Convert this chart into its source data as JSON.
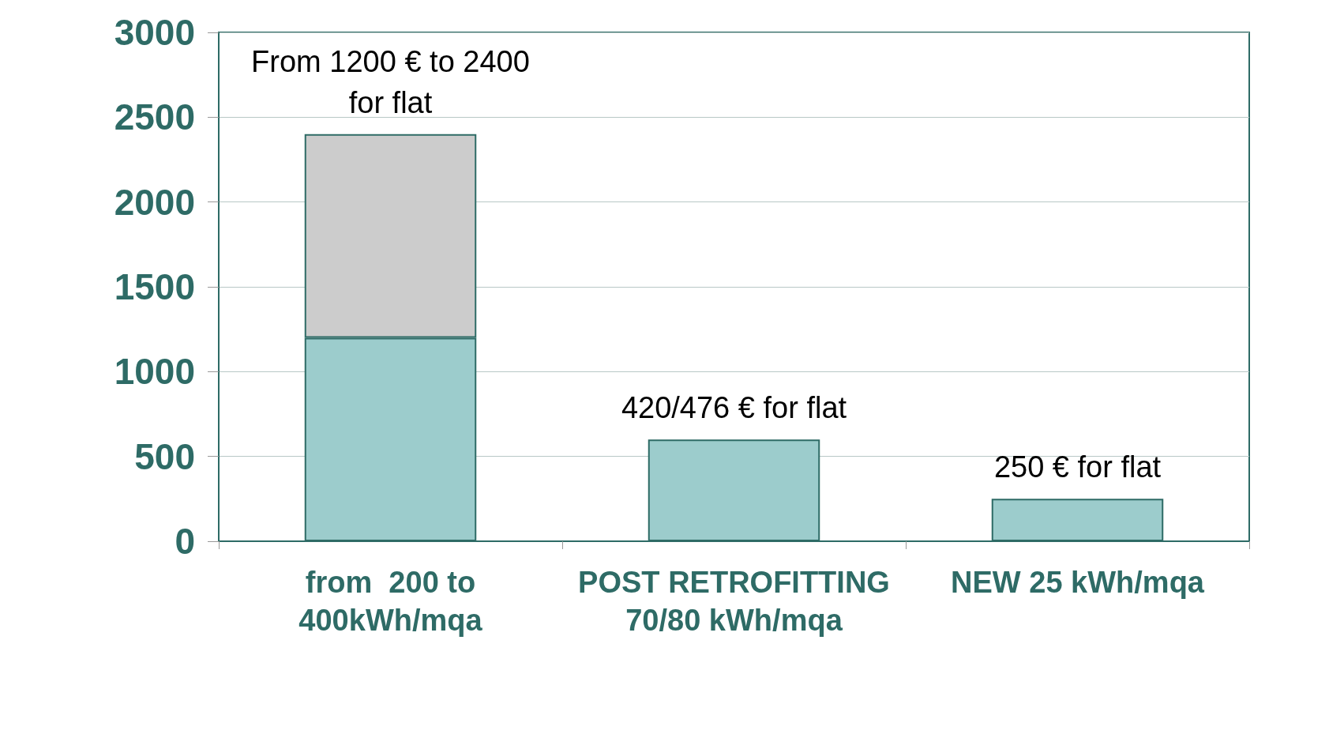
{
  "chart_data": {
    "type": "bar",
    "stacked": true,
    "categories": [
      "from  200 to\n400kWh/mqa",
      "POST RETROFITTING\n70/80 kWh/mqa",
      "NEW 25 kWh/mqa"
    ],
    "series": [
      {
        "color": "#9ccccc",
        "values": [
          1200,
          600,
          250
        ]
      },
      {
        "color": "#cccccc",
        "values": [
          1200,
          null,
          null
        ]
      }
    ],
    "ylim": [
      0,
      3000
    ],
    "yticks": [
      0,
      500,
      1000,
      1500,
      2000,
      2500,
      3000
    ],
    "grid": "y",
    "annotations": [
      {
        "text": "From 1200 € to 2400\nfor flat",
        "x": "from  200 to\n400kWh/mqa",
        "y": 2400
      },
      {
        "text": "420/476 € for flat",
        "x": "POST RETROFITTING\n70/80 kWh/mqa",
        "y": 600
      },
      {
        "text": "250 € for flat",
        "x": "NEW 25 kWh/mqa",
        "y": 250
      }
    ]
  }
}
